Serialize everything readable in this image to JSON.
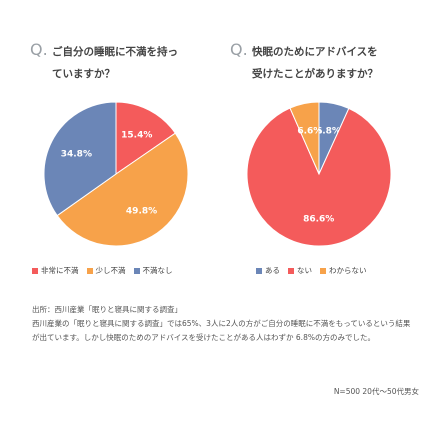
{
  "charts_text": {
    "q1_mark": "Q.",
    "q1_line1": "ご自分の睡眠に不満を持っ",
    "q1_line2": "ていますか？",
    "q2_mark": "Q.",
    "q2_line1": "快眠のためにアドバイスを",
    "q2_line2": "受けたことがありますか？"
  },
  "chart_data": [
    {
      "type": "pie",
      "title": "ご自分の睡眠に不満を持っていますか？",
      "categories": [
        "非常に不満",
        "少し不満",
        "不満なし"
      ],
      "values": [
        15.4,
        49.8,
        34.8
      ],
      "labels": [
        "15.4%",
        "49.8%",
        "34.8%"
      ],
      "colors": [
        "#f45b5b",
        "#f7a24a",
        "#6b86b7"
      ],
      "legend": "bottom"
    },
    {
      "type": "pie",
      "title": "快眠のためにアドバイスを受けたことがありますか？",
      "categories": [
        "ある",
        "ない",
        "わからない"
      ],
      "values": [
        6.8,
        86.6,
        6.6
      ],
      "labels": [
        "6.8%",
        "86.6%",
        "6.6%"
      ],
      "colors": [
        "#6b86b7",
        "#f45b5b",
        "#f7a24a"
      ],
      "legend": "bottom"
    }
  ],
  "notes": {
    "source": "出所：西川産業「眠りと寝具に関する調査」",
    "body": "西川産業の「眠りと寝具に関する調査」では65%、3人に2人の方がご自分の睡眠に不満をもっているという結果が出ています。しかし快眠のためのアドバイスを受けたことがある人はわずか 6.8%の方のみでした。"
  },
  "footer": "N=500 20代〜50代男女"
}
